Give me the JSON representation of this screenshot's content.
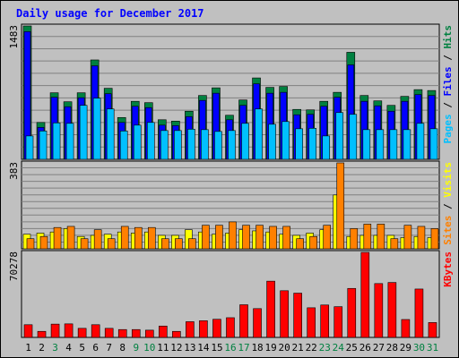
{
  "chart_data": {
    "type": "bar",
    "title": "Daily usage for December 2017",
    "categories": [
      "1",
      "2",
      "3",
      "4",
      "5",
      "6",
      "7",
      "8",
      "9",
      "10",
      "11",
      "12",
      "13",
      "14",
      "15",
      "16",
      "17",
      "18",
      "19",
      "20",
      "21",
      "22",
      "23",
      "24",
      "25",
      "26",
      "27",
      "28",
      "29",
      "30",
      "31"
    ],
    "weekend_days": [
      "3",
      "9",
      "10",
      "16",
      "17",
      "23",
      "24",
      "30",
      "31"
    ],
    "colors": {
      "hits": "#008040",
      "files": "#0000ff",
      "pages": "#00c0ff",
      "visits": "#ffff00",
      "sites": "#ff8000",
      "kbytes": "#ff0000",
      "title": "#0000ff",
      "weekday": "#000000",
      "weekend": "#008040"
    },
    "panels": [
      {
        "name": "hits-files-pages",
        "ymax_label": "1483",
        "ylim": [
          0,
          1483
        ],
        "side_label": [
          {
            "text": "Pages",
            "color": "#00c0ff"
          },
          {
            "text": " / ",
            "color": "#000000"
          },
          {
            "text": "Files",
            "color": "#0000ff"
          },
          {
            "text": " / ",
            "color": "#000000"
          },
          {
            "text": "Hits",
            "color": "#008040"
          }
        ],
        "series": [
          {
            "name": "Hits",
            "color": "#008040",
            "values": [
              1483,
              410,
              740,
              640,
              740,
              1105,
              790,
              465,
              645,
              630,
              440,
              425,
              535,
              710,
              795,
              490,
              660,
              905,
              800,
              810,
              555,
              550,
              645,
              745,
              1190,
              710,
              650,
              600,
              700,
              775,
              765
            ]
          },
          {
            "name": "Files",
            "color": "#0000ff",
            "values": [
              1420,
              355,
              690,
              585,
              685,
              1040,
              730,
              410,
              590,
              575,
              380,
              375,
              475,
              655,
              735,
              440,
              600,
              840,
              735,
              745,
              495,
              500,
              590,
              690,
              1050,
              645,
              595,
              535,
              645,
              720,
              710
            ]
          },
          {
            "name": "Pages",
            "color": "#00c0ff",
            "values": [
              260,
              315,
              405,
              400,
              600,
              680,
              560,
              315,
              380,
              410,
              320,
              320,
              335,
              330,
              310,
              320,
              400,
              560,
              390,
              420,
              340,
              345,
              260,
              520,
              500,
              330,
              330,
              330,
              330,
              400,
              340
            ]
          }
        ]
      },
      {
        "name": "visits-sites",
        "ymax_label": "383",
        "ylim": [
          0,
          383
        ],
        "side_label": [
          {
            "text": "Sites",
            "color": "#ff8000"
          },
          {
            "text": " / ",
            "color": "#000000"
          },
          {
            "text": "Visits",
            "color": "#ffff00"
          }
        ],
        "series": [
          {
            "name": "Visits",
            "color": "#ffff00",
            "values": [
              65,
              70,
              75,
              90,
              55,
              60,
              65,
              75,
              70,
              75,
              60,
              60,
              85,
              75,
              65,
              70,
              85,
              80,
              75,
              65,
              60,
              70,
              85,
              240,
              55,
              60,
              60,
              60,
              50,
              55,
              50
            ]
          },
          {
            "name": "Sites",
            "color": "#ff8000",
            "values": [
              45,
              55,
              95,
              100,
              45,
              85,
              45,
              100,
              95,
              95,
              45,
              45,
              45,
              105,
              105,
              120,
              105,
              105,
              100,
              100,
              45,
              55,
              105,
              383,
              90,
              110,
              110,
              45,
              105,
              100,
              90
            ]
          }
        ]
      },
      {
        "name": "kbytes",
        "ymax_label": "70278",
        "ylim": [
          0,
          70278
        ],
        "side_label": [
          {
            "text": "KBytes",
            "color": "#ff0000"
          }
        ],
        "series": [
          {
            "name": "KBytes",
            "color": "#ff0000",
            "values": [
              10500,
              5000,
              11000,
              11200,
              7500,
              10500,
              7500,
              6500,
              6500,
              6000,
              9400,
              5000,
              13000,
              13800,
              15000,
              16300,
              27000,
              23800,
              46500,
              38600,
              36600,
              24500,
              26800,
              25400,
              40500,
              70278,
              44500,
              45400,
              14800,
              40000,
              12300
            ]
          }
        ]
      }
    ]
  }
}
